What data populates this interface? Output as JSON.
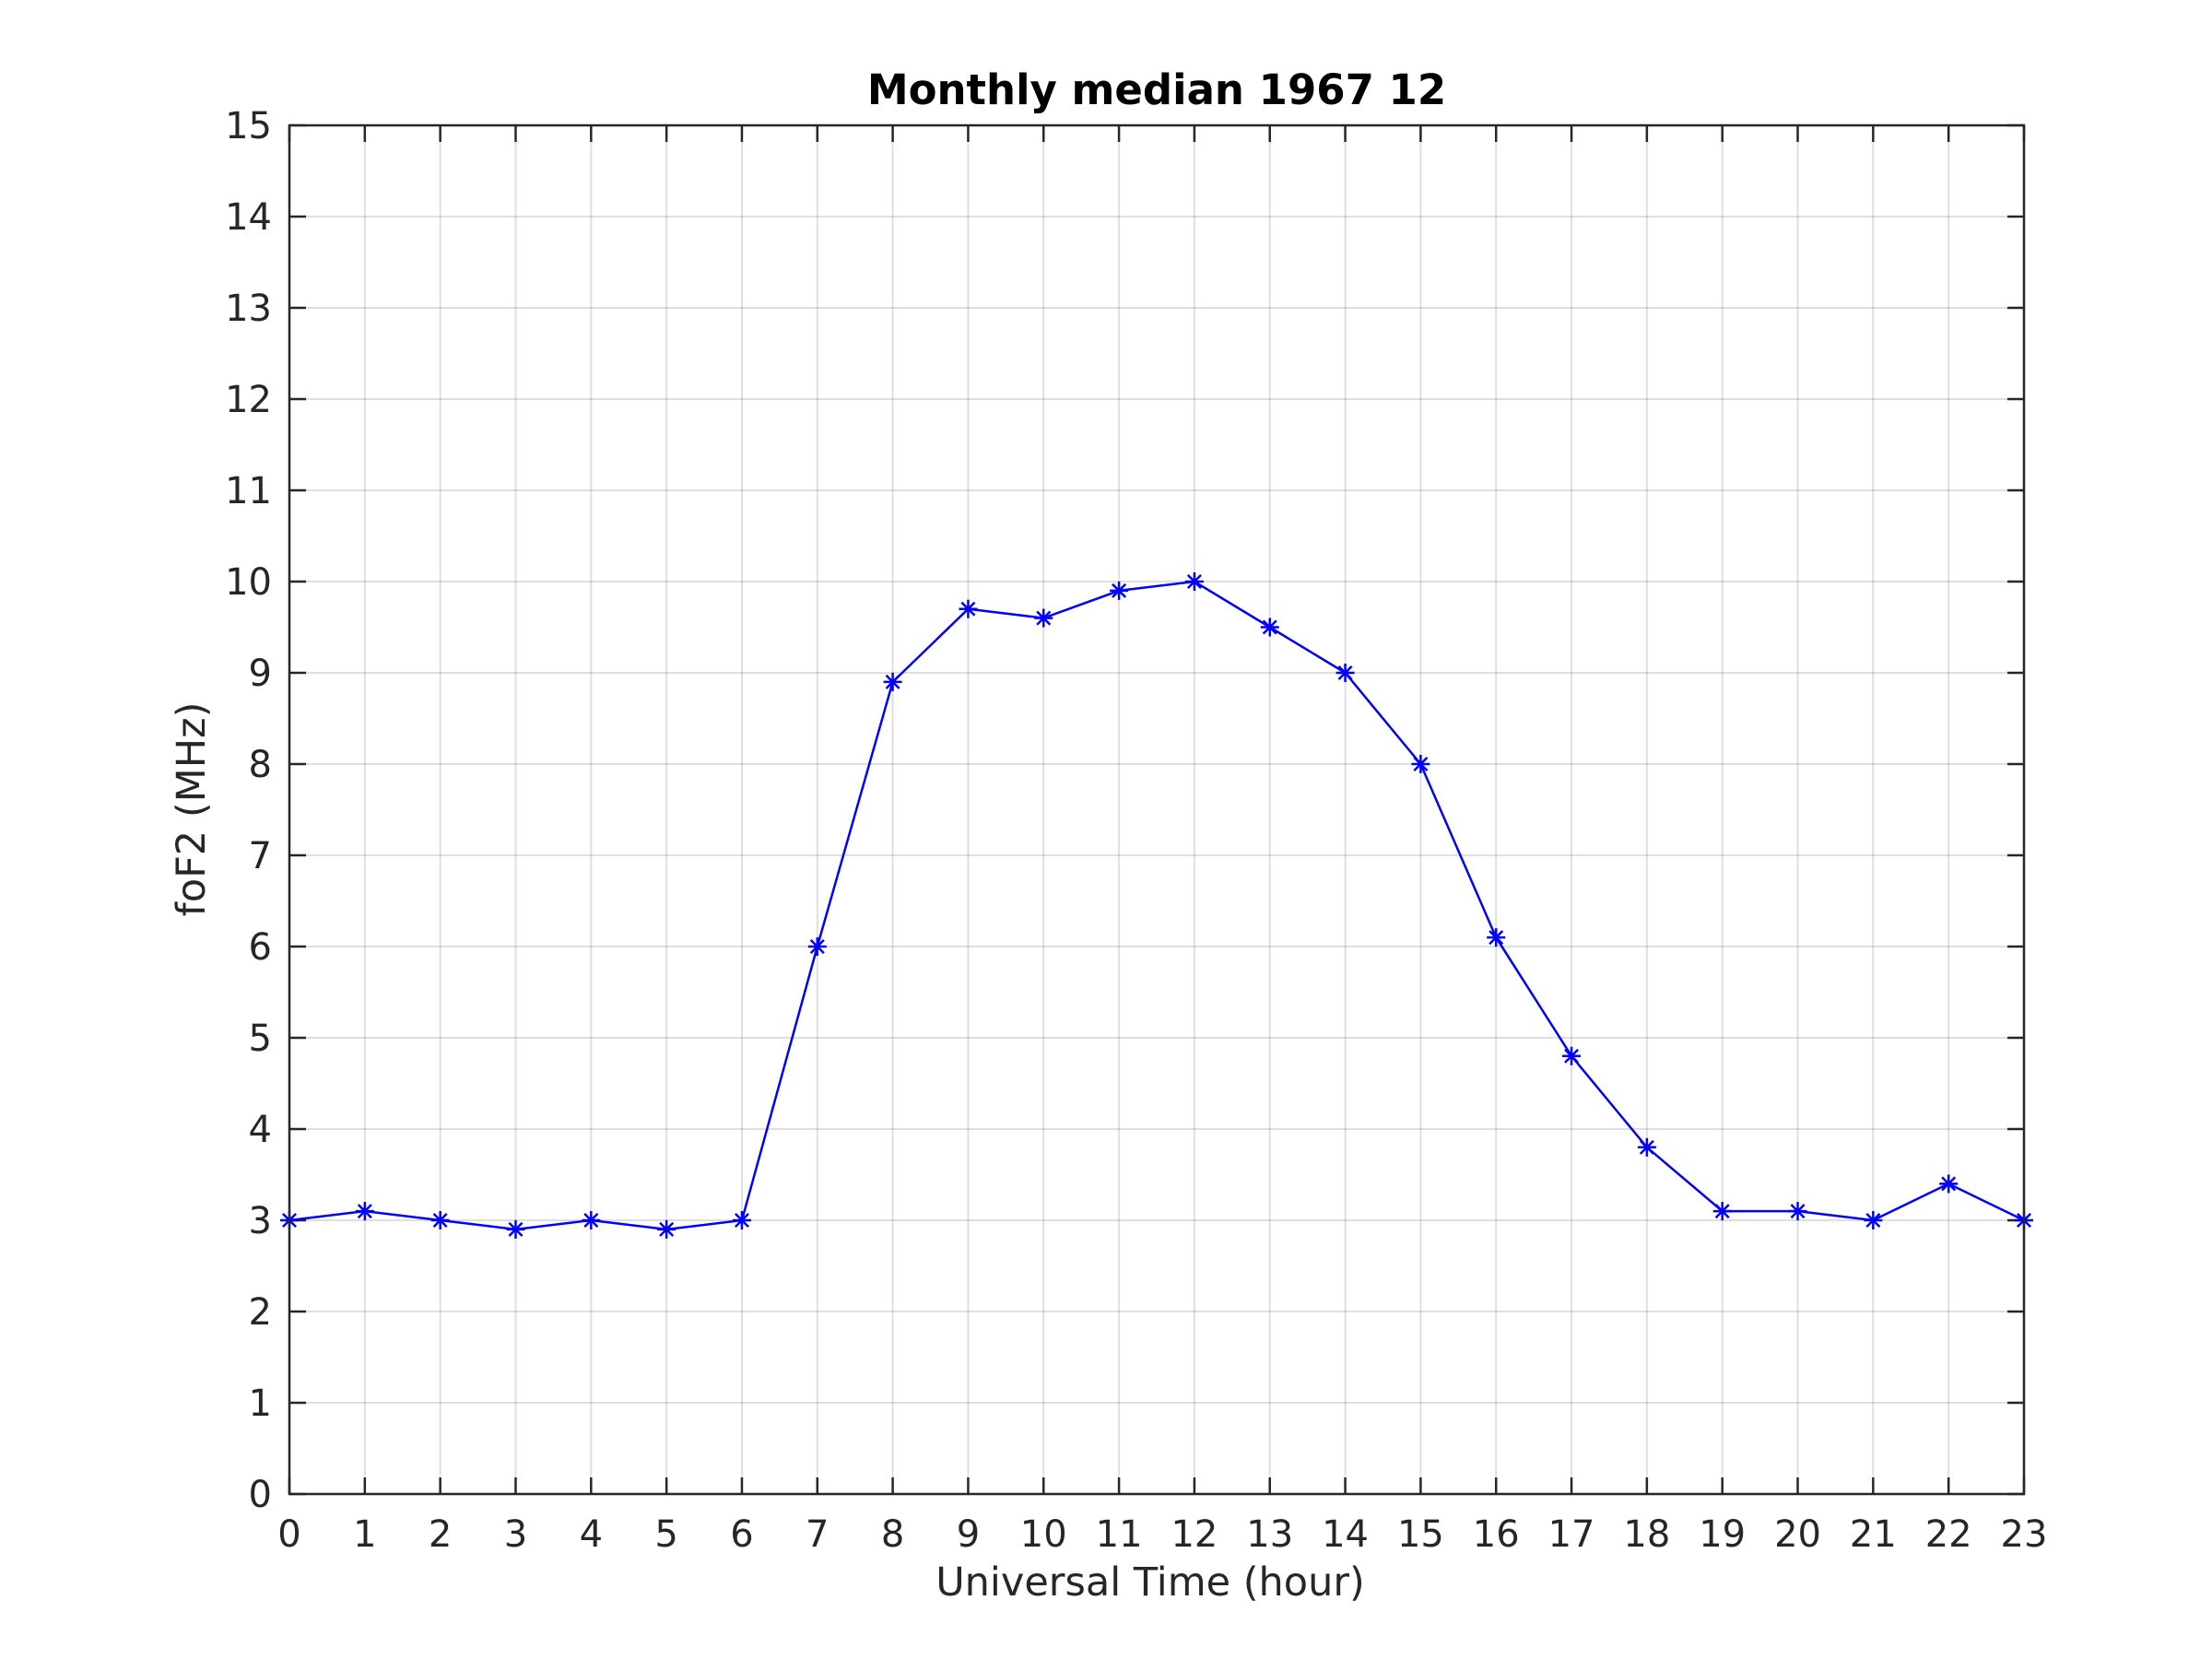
{
  "chart_data": {
    "type": "line",
    "title": "Monthly median 1967 12",
    "xlabel": "Universal Time (hour)",
    "ylabel": "foF2 (MHz)",
    "xlim": [
      0,
      23
    ],
    "ylim": [
      0,
      15
    ],
    "xticks": [
      0,
      1,
      2,
      3,
      4,
      5,
      6,
      7,
      8,
      9,
      10,
      11,
      12,
      13,
      14,
      15,
      16,
      17,
      18,
      19,
      20,
      21,
      22,
      23
    ],
    "yticks": [
      0,
      1,
      2,
      3,
      4,
      5,
      6,
      7,
      8,
      9,
      10,
      11,
      12,
      13,
      14,
      15
    ],
    "grid": true,
    "legend": "none",
    "marker": "asterisk",
    "series": [
      {
        "color": "#0000ff",
        "x": [
          0,
          1,
          2,
          3,
          4,
          5,
          6,
          7,
          8,
          9,
          10,
          11,
          12,
          13,
          14,
          15,
          16,
          17,
          18,
          19,
          20,
          21,
          22,
          23
        ],
        "values": [
          3.0,
          3.1,
          3.0,
          2.9,
          3.0,
          2.9,
          3.0,
          6.0,
          8.9,
          9.7,
          9.6,
          9.9,
          10.0,
          9.5,
          9.0,
          8.0,
          6.1,
          4.8,
          3.8,
          3.1,
          3.1,
          3.0,
          3.4,
          3.0
        ]
      }
    ]
  }
}
